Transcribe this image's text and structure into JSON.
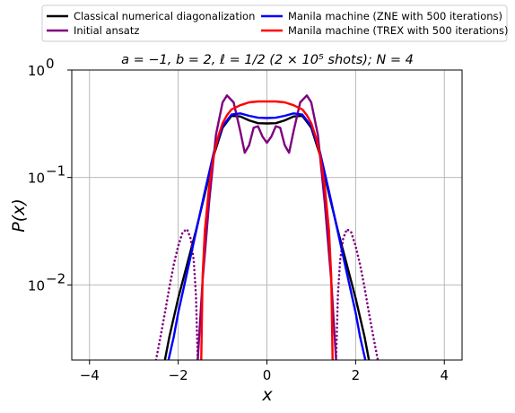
{
  "chart_data": {
    "type": "line",
    "title": "a = −1, b = 2, ℓ = 1/2 (2 × 10⁵ shots); N = 4",
    "xlabel": "x",
    "ylabel": "P(x)",
    "xlim": [
      -4.4,
      4.4
    ],
    "ylim": [
      0.002,
      1
    ],
    "yscale": "log",
    "grid": true,
    "legend_position": "top, above plot, two columns",
    "x_ticks": [
      {
        "value": -4,
        "label": "−4"
      },
      {
        "value": -2,
        "label": "−2"
      },
      {
        "value": 0,
        "label": "0"
      },
      {
        "value": 2,
        "label": "2"
      },
      {
        "value": 4,
        "label": "4"
      }
    ],
    "y_ticks": [
      {
        "value": 1,
        "base": "10",
        "exp": "0"
      },
      {
        "value": 0.1,
        "base": "10",
        "exp": "−1"
      },
      {
        "value": 0.01,
        "base": "10",
        "exp": "−2"
      }
    ],
    "series": [
      {
        "name": "Classical numerical diagonalization",
        "color": "#000000",
        "style": "solid",
        "x": [
          -2.3,
          -2.2,
          -2.0,
          -1.8,
          -1.6,
          -1.4,
          -1.2,
          -1.0,
          -0.8,
          -0.6,
          -0.4,
          -0.2,
          0.0,
          0.2,
          0.4,
          0.6,
          0.8,
          1.0,
          1.2,
          1.4,
          1.6,
          1.8,
          2.0,
          2.2,
          2.3
        ],
        "y": [
          0.002,
          0.0033,
          0.0075,
          0.0155,
          0.032,
          0.07,
          0.16,
          0.29,
          0.375,
          0.37,
          0.34,
          0.32,
          0.318,
          0.32,
          0.34,
          0.37,
          0.375,
          0.29,
          0.16,
          0.07,
          0.032,
          0.0155,
          0.0075,
          0.0033,
          0.002
        ]
      },
      {
        "name": "Initial ansatz",
        "color": "#7f007f",
        "style": "solid",
        "x": [
          -1.56,
          -1.45,
          -1.3,
          -1.15,
          -1.0,
          -0.9,
          -0.75,
          -0.6,
          -0.5,
          -0.4,
          -0.3,
          -0.2,
          -0.1,
          0.0,
          0.1,
          0.2,
          0.3,
          0.4,
          0.5,
          0.6,
          0.75,
          0.9,
          1.0,
          1.15,
          1.3,
          1.45,
          1.56
        ],
        "y": [
          0.002,
          0.011,
          0.06,
          0.25,
          0.5,
          0.58,
          0.5,
          0.27,
          0.17,
          0.2,
          0.29,
          0.3,
          0.24,
          0.21,
          0.24,
          0.3,
          0.29,
          0.2,
          0.17,
          0.27,
          0.5,
          0.58,
          0.5,
          0.25,
          0.06,
          0.011,
          0.002
        ]
      },
      {
        "name": "Initial ansatz (dotted tails)",
        "color": "#7f007f",
        "style": "dotted",
        "x": [
          -2.5,
          -2.4,
          -2.3,
          -2.2,
          -2.1,
          -2.0,
          -1.9,
          -1.8,
          -1.72,
          -1.65,
          -1.6,
          -1.56,
          1.56,
          1.6,
          1.65,
          1.72,
          1.8,
          1.9,
          2.0,
          2.1,
          2.2,
          2.3,
          2.4,
          2.5
        ],
        "y": [
          0.002,
          0.0033,
          0.0055,
          0.0095,
          0.0155,
          0.023,
          0.031,
          0.033,
          0.027,
          0.017,
          0.008,
          0.002,
          0.002,
          0.008,
          0.017,
          0.027,
          0.033,
          0.031,
          0.023,
          0.0155,
          0.0095,
          0.0055,
          0.0033,
          0.002
        ],
        "segments": 2
      },
      {
        "name": "Manila machine (ZNE with 500 iterations)",
        "color": "#0000ff",
        "style": "solid",
        "x": [
          -2.22,
          -2.1,
          -2.0,
          -1.8,
          -1.6,
          -1.4,
          -1.2,
          -1.0,
          -0.8,
          -0.6,
          -0.4,
          -0.2,
          0.0,
          0.2,
          0.4,
          0.6,
          0.8,
          1.0,
          1.2,
          1.4,
          1.6,
          1.8,
          2.0,
          2.1,
          2.22
        ],
        "y": [
          0.002,
          0.0033,
          0.0055,
          0.013,
          0.031,
          0.074,
          0.17,
          0.3,
          0.385,
          0.395,
          0.375,
          0.36,
          0.357,
          0.36,
          0.375,
          0.395,
          0.385,
          0.3,
          0.17,
          0.074,
          0.031,
          0.013,
          0.0055,
          0.0033,
          0.002
        ]
      },
      {
        "name": "Manila machine (TREX with 500 iterations)",
        "color": "#ff0000",
        "style": "solid",
        "x": [
          -1.48,
          -1.45,
          -1.4,
          -1.3,
          -1.2,
          -1.1,
          -1.0,
          -0.9,
          -0.8,
          -0.6,
          -0.4,
          -0.2,
          0.0,
          0.2,
          0.4,
          0.6,
          0.8,
          0.9,
          1.0,
          1.1,
          1.2,
          1.3,
          1.4,
          1.45,
          1.48
        ],
        "y": [
          0.002,
          0.012,
          0.032,
          0.085,
          0.16,
          0.24,
          0.32,
          0.38,
          0.43,
          0.47,
          0.5,
          0.51,
          0.51,
          0.51,
          0.5,
          0.47,
          0.43,
          0.38,
          0.32,
          0.24,
          0.16,
          0.085,
          0.032,
          0.012,
          0.002
        ]
      }
    ]
  }
}
